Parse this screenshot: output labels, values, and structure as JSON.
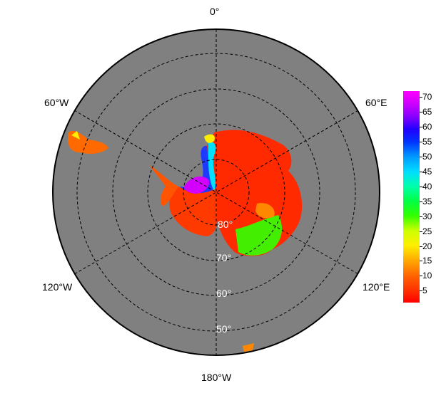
{
  "map": {
    "longitude_labels": {
      "top": "0°",
      "upper_left": "60°W",
      "upper_right": "60°E",
      "lower_left": "120°W",
      "lower_right": "120°E",
      "bottom": "180°W"
    },
    "latitude_labels": [
      "80°",
      "70°",
      "60°",
      "50°"
    ],
    "projection": "south-polar-stereographic",
    "ocean_color": "#808080"
  },
  "colorbar": {
    "ticks": [
      "70",
      "65",
      "60",
      "55",
      "50",
      "45",
      "40",
      "35",
      "30",
      "25",
      "20",
      "15",
      "10",
      "5"
    ],
    "range": [
      1,
      72
    ]
  }
}
